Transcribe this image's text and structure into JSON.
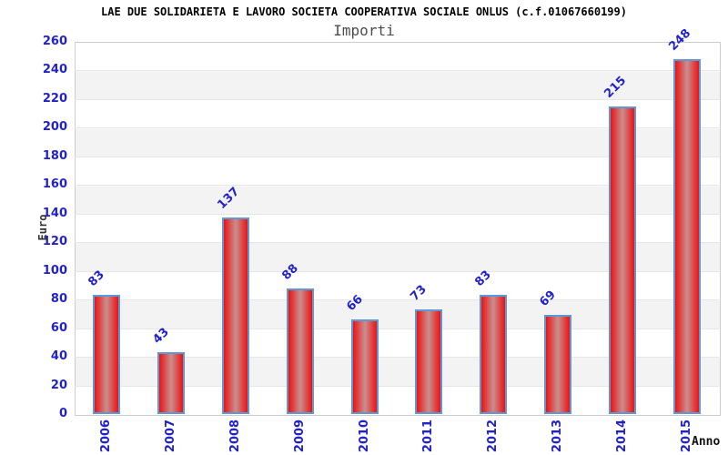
{
  "header": {
    "title": "LAE DUE SOLIDARIETA E LAVORO SOCIETA COOPERATIVA SOCIALE ONLUS (c.f.01067660199)",
    "subtitle": "Importi"
  },
  "chart_data": {
    "type": "bar",
    "title": "LAE DUE SOLIDARIETA E LAVORO SOCIETA COOPERATIVA SOCIALE ONLUS (c.f.01067660199)",
    "subtitle": "Importi",
    "categories": [
      "2006",
      "2007",
      "2008",
      "2009",
      "2010",
      "2011",
      "2012",
      "2013",
      "2014",
      "2015"
    ],
    "values": [
      83,
      43,
      137,
      88,
      66,
      73,
      83,
      69,
      215,
      248
    ],
    "xlabel": "Anno",
    "ylabel": "Euro",
    "ylim": [
      0,
      260
    ],
    "ytick_step": 20,
    "yticks": [
      0,
      20,
      40,
      60,
      80,
      100,
      120,
      140,
      160,
      180,
      200,
      220,
      240,
      260
    ],
    "legend": null,
    "grid": "alternating-horizontal-bands",
    "bar_value_label_rotation_deg": -45,
    "x_tick_label_rotation_deg": -90,
    "colors": {
      "label_blue": "#2222cc",
      "bar_fill_edge": "#ee1111",
      "bar_fill_center": "#c98f8f",
      "bar_border": "#5b9bd5",
      "band_gray": "#f3f3f3",
      "gridline": "#e6e6e6",
      "plot_border": "#cccccc",
      "title_color": "#000000",
      "subtitle_color": "#4d4d4d"
    }
  }
}
